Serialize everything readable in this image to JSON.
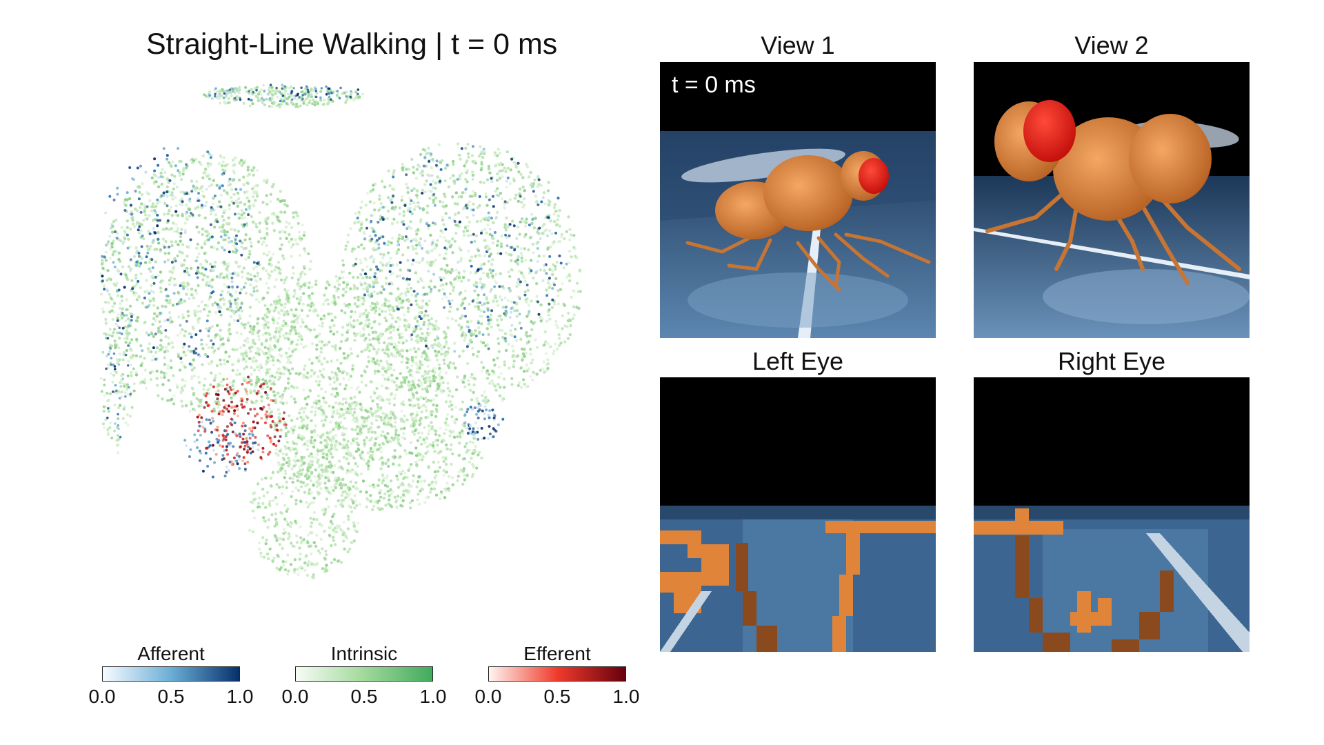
{
  "main_title": "Straight-Line Walking | t = 0 ms",
  "panels": {
    "view1": {
      "title": "View 1",
      "overlay": "t = 0 ms"
    },
    "view2": {
      "title": "View 2"
    },
    "left_eye": {
      "title": "Left Eye"
    },
    "right_eye": {
      "title": "Right Eye"
    }
  },
  "colorbars": [
    {
      "label": "Afferent",
      "ticks": [
        "0.0",
        "0.5",
        "1.0"
      ],
      "colors": [
        "#f7fbff",
        "#6baed6",
        "#08306b"
      ]
    },
    {
      "label": "Intrinsic",
      "ticks": [
        "0.0",
        "0.5",
        "1.0"
      ],
      "colors": [
        "#f7fcf5",
        "#a1d99b",
        "#41ab5d"
      ]
    },
    {
      "label": "Efferent",
      "ticks": [
        "0.0",
        "0.5",
        "1.0"
      ],
      "colors": [
        "#fff5f0",
        "#ef3b2c",
        "#67000d"
      ]
    }
  ],
  "colors": {
    "afferent": "#1d4f91",
    "intrinsic": "#a6dba0",
    "efferent": "#c0281e",
    "fly_body": "#e0843a",
    "fly_eye": "#f11a12",
    "floor": "#3c6691"
  }
}
